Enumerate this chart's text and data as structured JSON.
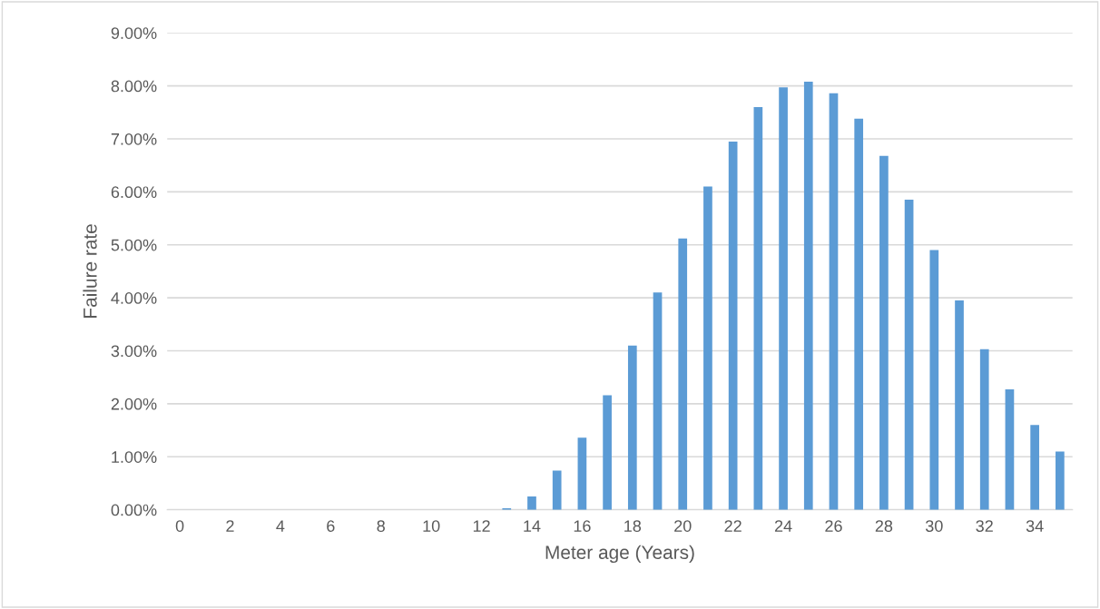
{
  "chart_data": {
    "type": "bar",
    "xlabel": "Meter age (Years)",
    "ylabel": "Failure rate",
    "categories": [
      "0",
      null,
      "2",
      null,
      "4",
      null,
      "6",
      null,
      "8",
      null,
      "10",
      null,
      "12",
      null,
      "14",
      null,
      "16",
      null,
      "18",
      null,
      "20",
      null,
      "22",
      null,
      "24",
      null,
      "26",
      null,
      "28",
      null,
      "30",
      null,
      "32",
      null,
      "34",
      null
    ],
    "values": [
      0,
      0,
      0,
      0,
      0,
      0,
      0,
      0,
      0,
      0,
      0,
      0,
      0,
      0.03,
      0.25,
      0.74,
      1.36,
      2.16,
      3.1,
      4.1,
      5.12,
      6.1,
      6.95,
      7.6,
      7.97,
      8.08,
      7.86,
      7.38,
      6.68,
      5.85,
      4.9,
      3.95,
      3.03,
      2.27,
      1.6,
      1.1
    ],
    "color": "#5b9bd5",
    "ylim": [
      0,
      9
    ],
    "yticks": [
      {
        "value": 0,
        "label": "0.00%"
      },
      {
        "value": 1,
        "label": "1.00%"
      },
      {
        "value": 2,
        "label": "2.00%"
      },
      {
        "value": 3,
        "label": "3.00%"
      },
      {
        "value": 4,
        "label": "4.00%"
      },
      {
        "value": 5,
        "label": "5.00%"
      },
      {
        "value": 6,
        "label": "6.00%"
      },
      {
        "value": 7,
        "label": "7.00%"
      },
      {
        "value": 8,
        "label": "8.00%"
      },
      {
        "value": 9,
        "label": "9.00%"
      }
    ],
    "grid": "y",
    "legend": false
  }
}
